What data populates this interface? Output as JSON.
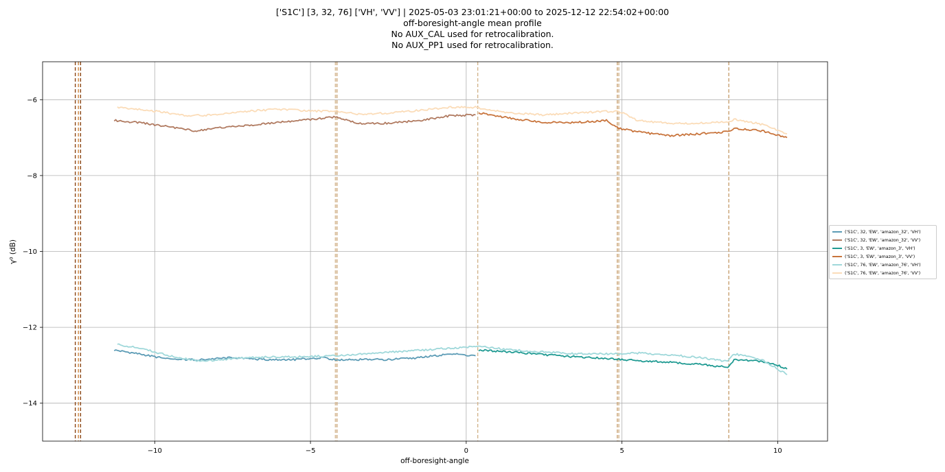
{
  "chart_data": {
    "type": "line",
    "title_lines": [
      "['S1C'] [3, 32, 76] ['VH', 'VV'] | 2025-05-03 23:01:21+00:00 to 2025-12-12 22:54:02+00:00",
      "off-boresight-angle mean profile",
      "No AUX_CAL used for retrocalibration.",
      "No AUX_PP1 used for retrocalibration."
    ],
    "xlabel": "off-boresight-angle",
    "ylabel": "γ⁰ (dB)",
    "xlim": [
      -13.6,
      11.6
    ],
    "ylim": [
      -15,
      -5
    ],
    "xticks": [
      -10,
      -5,
      0,
      5,
      10
    ],
    "xtick_labels": [
      "−10",
      "−5",
      "0",
      "5",
      "10"
    ],
    "yticks": [
      -14,
      -12,
      -10,
      -8,
      -6
    ],
    "ytick_labels": [
      "−14",
      "−12",
      "−10",
      "−8",
      "−6"
    ],
    "grid": true,
    "legend_position": "outside right, center",
    "vlines": [
      {
        "x": -12.55,
        "color": "#8b4513"
      },
      {
        "x": -12.45,
        "color": "#cd853f"
      },
      {
        "x": -12.38,
        "color": "#8b4513"
      },
      {
        "x": -4.2,
        "color": "#d2b48c"
      },
      {
        "x": -4.15,
        "color": "#c8a070"
      },
      {
        "x": 0.37,
        "color": "#d2b48c"
      },
      {
        "x": 4.85,
        "color": "#c8a070"
      },
      {
        "x": 4.9,
        "color": "#d2b48c"
      },
      {
        "x": 8.43,
        "color": "#c8a070"
      }
    ],
    "series": [
      {
        "name": "('S1C', 32, 'EW', 'amazon_32', 'VH')",
        "color": "#5b9bb5",
        "x": [
          -11.3,
          -10.5,
          -9.5,
          -8.5,
          -7.5,
          -6.5,
          -5.5,
          -4.6,
          -4.2,
          -3.5,
          -2.5,
          -1.5,
          -0.5,
          0.3
        ],
        "y": [
          -12.6,
          -12.7,
          -12.85,
          -12.85,
          -12.8,
          -12.85,
          -12.85,
          -12.8,
          -12.85,
          -12.85,
          -12.85,
          -12.8,
          -12.7,
          -12.75
        ]
      },
      {
        "name": "('S1C', 32, 'EW', 'amazon_32', 'VV')",
        "color": "#b07a60",
        "x": [
          -11.3,
          -10.5,
          -9.5,
          -8.7,
          -8.0,
          -7.0,
          -6.0,
          -5.0,
          -4.2,
          -3.5,
          -2.5,
          -1.5,
          -0.5,
          0.3
        ],
        "y": [
          -6.55,
          -6.6,
          -6.72,
          -6.82,
          -6.75,
          -6.68,
          -6.6,
          -6.52,
          -6.45,
          -6.62,
          -6.62,
          -6.55,
          -6.42,
          -6.4
        ]
      },
      {
        "name": "('S1C', 3, 'EW', 'amazon_3', 'VH')",
        "color": "#1f9a92",
        "x": [
          0.4,
          1.5,
          2.5,
          3.5,
          4.5,
          5.5,
          6.5,
          7.5,
          8.4,
          8.6,
          9.5,
          10.0,
          10.3
        ],
        "y": [
          -12.6,
          -12.65,
          -12.72,
          -12.78,
          -12.82,
          -12.88,
          -12.92,
          -12.98,
          -13.05,
          -12.85,
          -12.9,
          -13.0,
          -13.1
        ]
      },
      {
        "name": "('S1C', 3, 'EW', 'amazon_3', 'VV')",
        "color": "#c8743c",
        "x": [
          0.4,
          1.5,
          2.5,
          3.5,
          4.5,
          4.9,
          5.5,
          6.5,
          7.5,
          8.4,
          8.6,
          9.5,
          10.3
        ],
        "y": [
          -6.35,
          -6.5,
          -6.6,
          -6.6,
          -6.55,
          -6.75,
          -6.85,
          -6.95,
          -6.9,
          -6.85,
          -6.75,
          -6.82,
          -7.0
        ]
      },
      {
        "name": "('S1C', 76, 'EW', 'amazon_76', 'VH')",
        "color": "#9fd8da",
        "x": [
          -11.2,
          -10.5,
          -9.5,
          -8.5,
          -7.5,
          -6.5,
          -5.5,
          -4.2,
          0.4,
          1.5,
          2.5,
          3.5,
          4.9,
          5.5,
          6.5,
          7.5,
          8.4,
          8.6,
          9.5,
          10.3
        ],
        "y": [
          -12.45,
          -12.55,
          -12.75,
          -12.9,
          -12.82,
          -12.78,
          -12.78,
          -12.75,
          -12.5,
          -12.6,
          -12.65,
          -12.7,
          -12.7,
          -12.68,
          -12.72,
          -12.8,
          -12.9,
          -12.7,
          -12.85,
          -13.25
        ]
      },
      {
        "name": "('S1C', 76, 'EW', 'amazon_76', 'VV')",
        "color": "#fbdcb8",
        "x": [
          -11.2,
          -10.0,
          -9.0,
          -8.0,
          -7.0,
          -6.0,
          -5.0,
          -4.2,
          -3.5,
          -2.5,
          -1.5,
          -0.5,
          0.3,
          0.5,
          1.5,
          2.5,
          3.5,
          4.9,
          5.5,
          6.5,
          7.5,
          8.4,
          8.6,
          9.5,
          10.3
        ],
        "y": [
          -6.2,
          -6.3,
          -6.42,
          -6.4,
          -6.3,
          -6.25,
          -6.3,
          -6.3,
          -6.38,
          -6.35,
          -6.28,
          -6.2,
          -6.2,
          -6.25,
          -6.35,
          -6.4,
          -6.35,
          -6.3,
          -6.55,
          -6.62,
          -6.62,
          -6.58,
          -6.52,
          -6.65,
          -6.9
        ]
      }
    ]
  }
}
